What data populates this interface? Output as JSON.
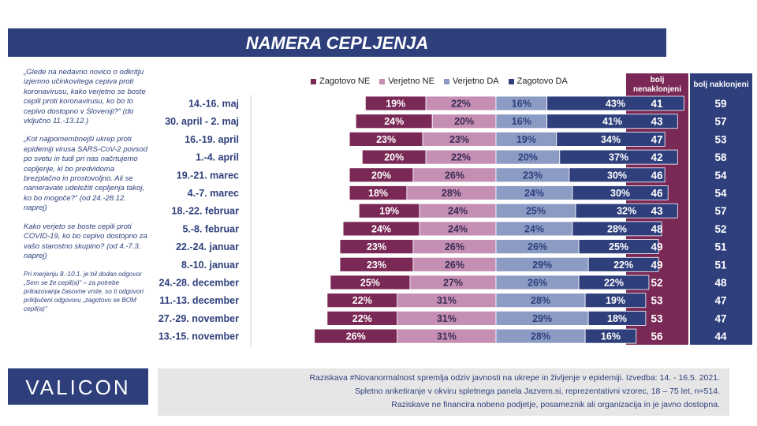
{
  "title": "NAMERA CEPLJENJA",
  "notes": [
    "„Glede na nedavno novico o odkritju izjemno učinkovitega cepiva proti koronavirusu, kako verjetno se boste cepili proti koronavirusu, ko bo to cepivo dostopno v Sloveniji?“ (do vključno 11.-13.12.)",
    "„Kot najpomembnejši ukrep proti epidemiji virusa SARS-CoV-2 povsod po svetu in tudi pri nas načrtujemo cepljenje, ki bo predvidoma brezplačno in prostovoljno. Ali se nameravate udeležiti cepljenja takoj, ko bo mogoče?“ (od 24.-28.12. naprej)",
    "Kako verjeto se boste cepili proti COVID-19, ko bo cepivo dostopno za vašo starostno skupino? (od 4.-7.3. naprej)"
  ],
  "note_small": "Pri merjenju  8.-10.1. je bil dodan odgovor „Sem se že cepil(a)“ – za potrebe prikazovanja časovne vrste, so ti odgovori priključeni odgovoru „zagotovo se BOM cepil(a)“",
  "headers": {
    "ne": "bolj nenaklonjeni",
    "da": "bolj naklonjeni"
  },
  "colors": {
    "zagotovo_ne": "#7a2855",
    "verjetno_ne": "#c48fb2",
    "verjetno_da": "#8c9bc4",
    "zagotovo_da": "#2e3f7c"
  },
  "chart_data": {
    "type": "bar",
    "stacked": "diverging",
    "series": [
      {
        "name": "Zagotovo NE",
        "values": [
          19,
          24,
          23,
          20,
          20,
          18,
          19,
          24,
          23,
          23,
          25,
          22,
          22,
          26
        ]
      },
      {
        "name": "Verjetno NE",
        "values": [
          22,
          20,
          23,
          22,
          26,
          28,
          24,
          24,
          26,
          26,
          27,
          31,
          31,
          31
        ]
      },
      {
        "name": "Verjetno DA",
        "values": [
          16,
          16,
          19,
          20,
          23,
          24,
          25,
          24,
          26,
          29,
          26,
          28,
          29,
          28
        ]
      },
      {
        "name": "Zagotovo DA",
        "values": [
          43,
          41,
          34,
          37,
          30,
          30,
          32,
          28,
          25,
          22,
          22,
          19,
          18,
          16
        ]
      }
    ],
    "categories": [
      "14.-16. maj",
      "30. april - 2. maj",
      "16.-19. april",
      "1.-4. april",
      "19.-21. marec",
      "4.-7. marec",
      "18.-22. februar",
      "5.-8. februar",
      "22.-24. januar",
      "8.-10. januar",
      "24.-28. december",
      "11.-13. december",
      "27.-29. november",
      "13.-15. november"
    ],
    "summary_ne": [
      41,
      43,
      47,
      42,
      46,
      46,
      43,
      48,
      49,
      49,
      52,
      53,
      53,
      56
    ],
    "summary_da": [
      59,
      57,
      53,
      58,
      54,
      54,
      57,
      52,
      51,
      51,
      48,
      47,
      47,
      44
    ],
    "legend_position": "top"
  },
  "logo": "VALICON",
  "footer": [
    "Raziskava #Novanormalnost spremlja odziv javnosti na ukrepe in življenje v epidemiji. Izvedba: 14. - 16.5. 2021.",
    "Spletno anketiranje v okviru spletnega panela Jazvem.si, reprezentativni vzorec, 18 – 75 let, n=514.",
    "Raziskave ne financira nobeno podjetje, posameznik ali organizacija in je javno dostopna."
  ]
}
